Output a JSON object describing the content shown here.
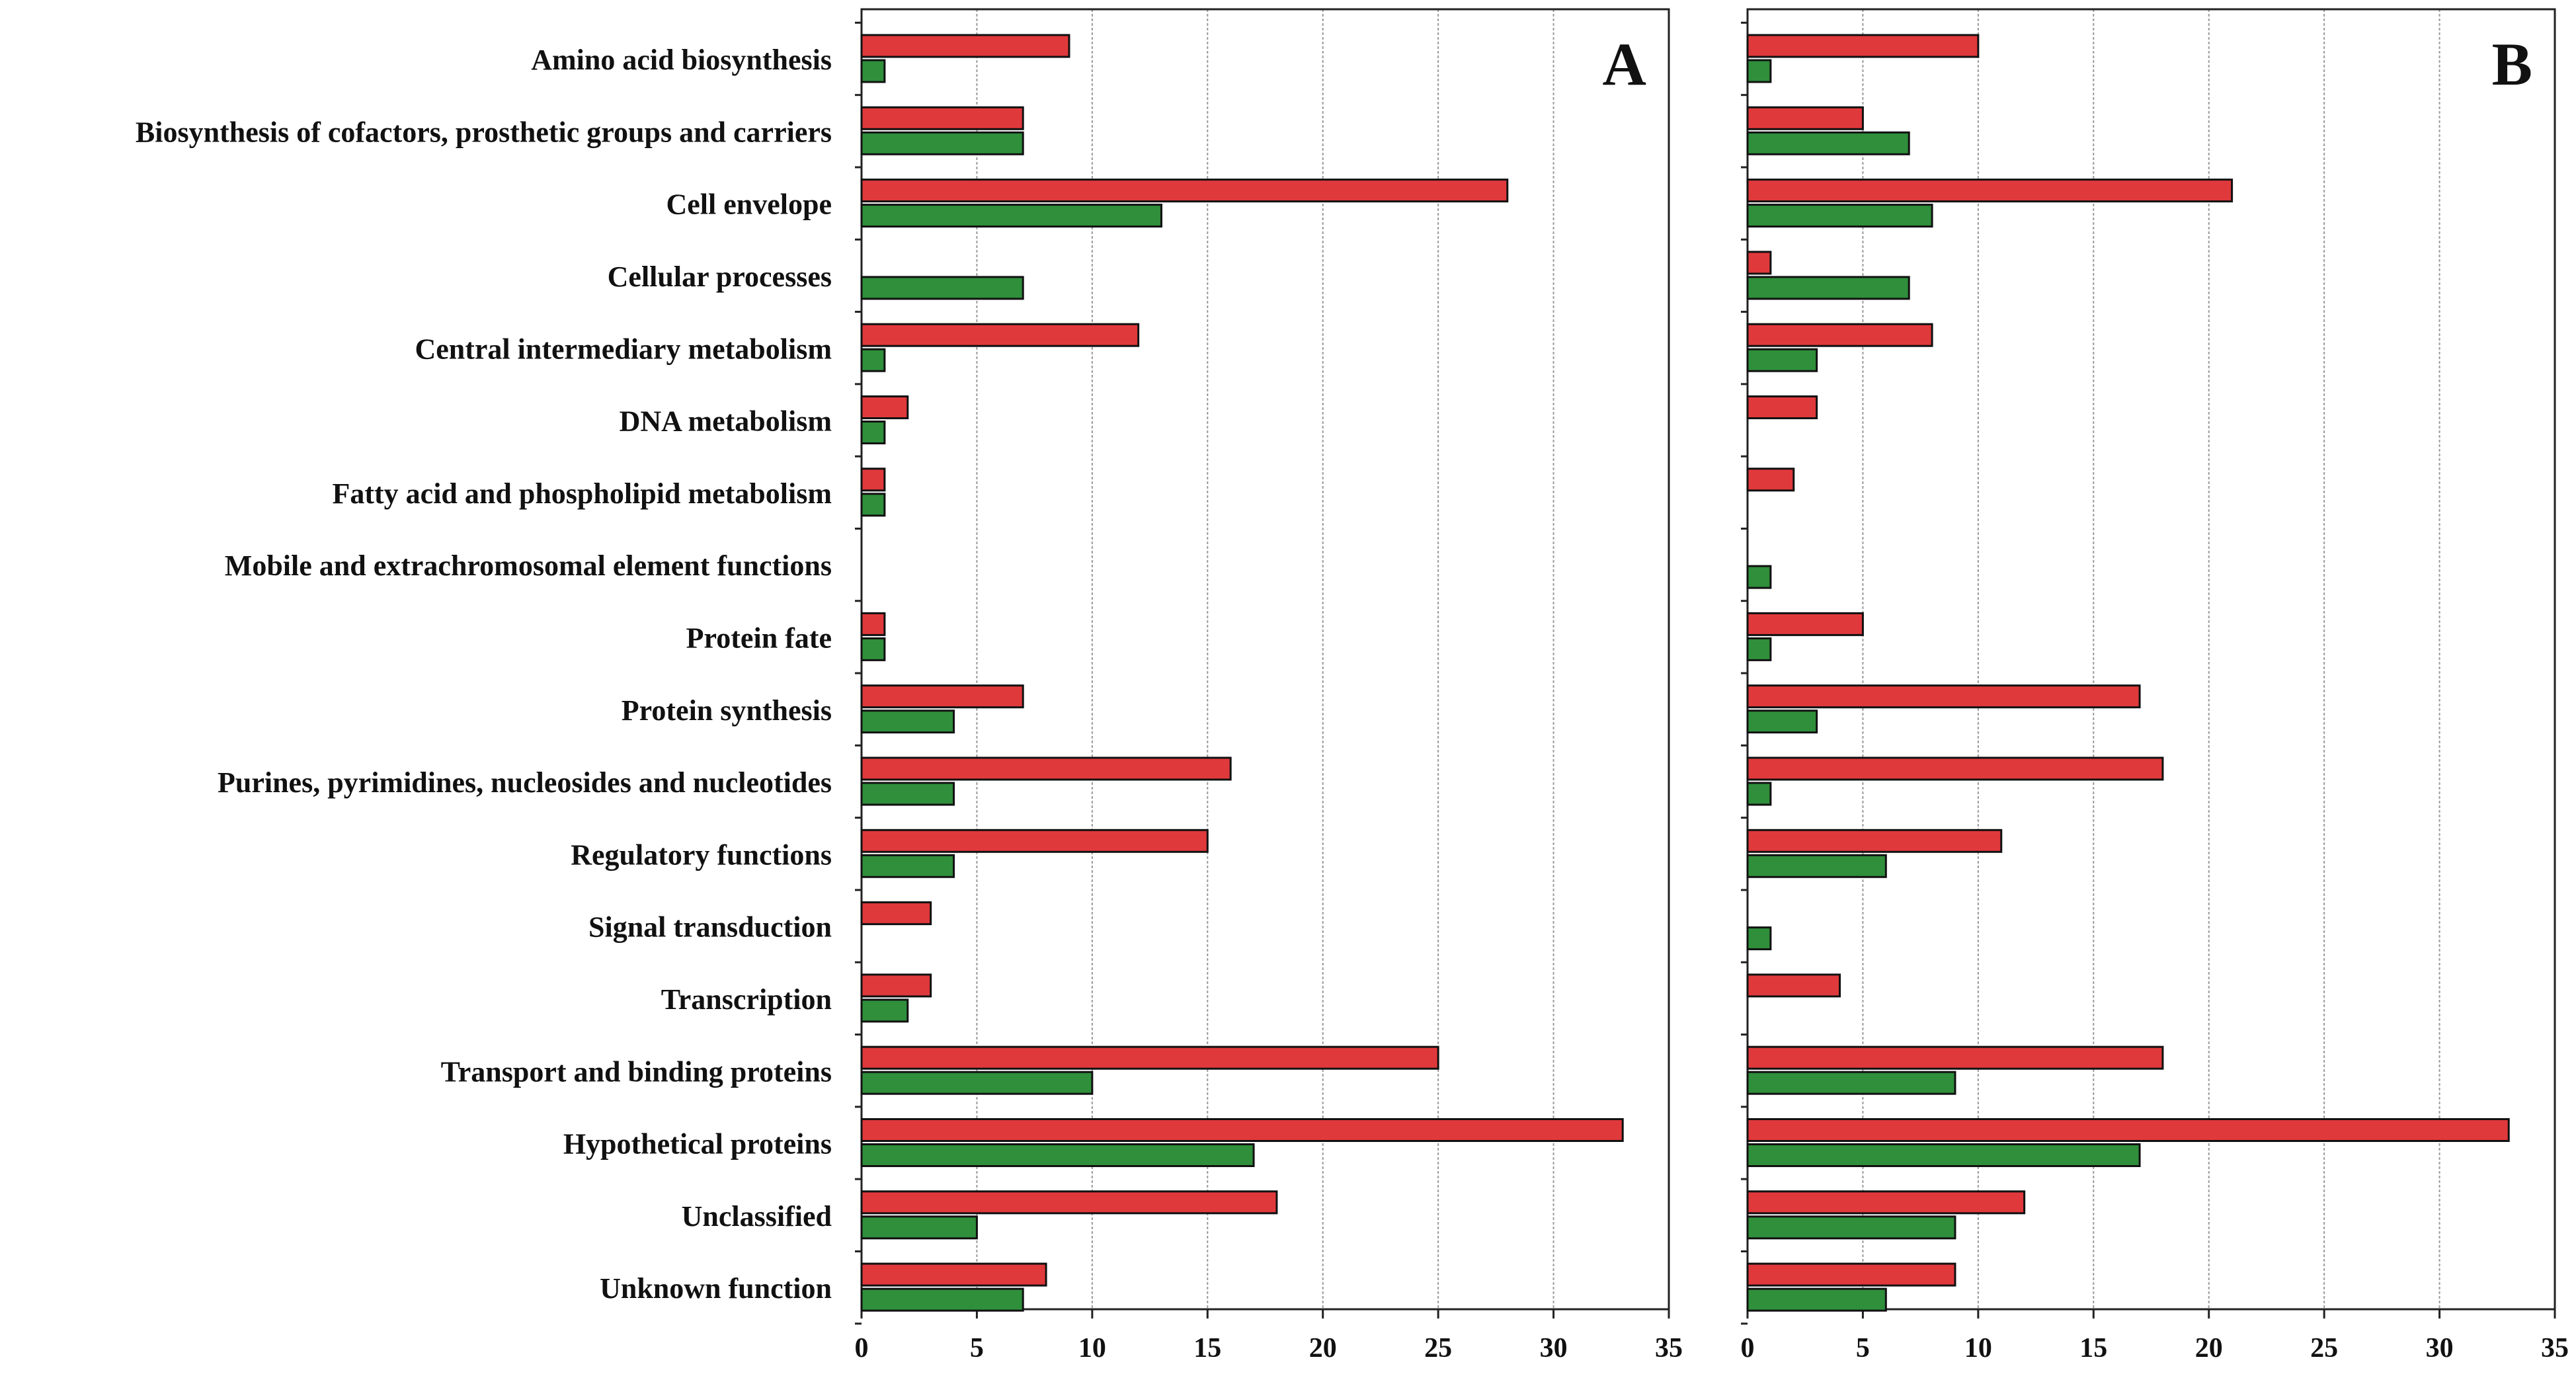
{
  "colors": {
    "series_1": "#e0393c",
    "series_2": "#2f8f3b",
    "frame": "#222222",
    "grid": "#9a9a9a"
  },
  "chart_data": [
    {
      "panel": "A",
      "type": "bar",
      "orientation": "horizontal",
      "title": "",
      "xlabel": "",
      "ylabel": "",
      "xlim": [
        0,
        35
      ],
      "xticks": [
        "0",
        "5",
        "10",
        "15",
        "20",
        "25",
        "30",
        "35"
      ],
      "grid": "vertical dashed",
      "categories": [
        "Amino acid biosynthesis",
        "Biosynthesis of cofactors, prosthetic groups and carriers",
        "Cell envelope",
        "Cellular processes",
        "Central intermediary metabolism",
        "DNA metabolism",
        "Fatty acid and phospholipid metabolism",
        "Mobile and extrachromosomal element functions",
        "Protein fate",
        "Protein synthesis",
        "Purines, pyrimidines, nucleosides and nucleotides",
        "Regulatory functions",
        "Signal transduction",
        "Transcription",
        "Transport and binding proteins",
        "Hypothetical proteins",
        "Unclassified",
        "Unknown function"
      ],
      "series": [
        {
          "name": "red",
          "values": [
            9,
            7,
            28,
            0,
            12,
            2,
            1,
            0,
            1,
            7,
            16,
            15,
            3,
            3,
            25,
            33,
            18,
            8
          ]
        },
        {
          "name": "green",
          "values": [
            1,
            7,
            13,
            7,
            1,
            1,
            1,
            0,
            1,
            4,
            4,
            4,
            0,
            2,
            10,
            17,
            5,
            7
          ]
        }
      ]
    },
    {
      "panel": "B",
      "type": "bar",
      "orientation": "horizontal",
      "title": "",
      "xlabel": "",
      "ylabel": "",
      "xlim": [
        0,
        35
      ],
      "xticks": [
        "0",
        "5",
        "10",
        "15",
        "20",
        "25",
        "30",
        "35"
      ],
      "grid": "vertical dashed",
      "categories": [
        "Amino acid biosynthesis",
        "Biosynthesis of cofactors, prosthetic groups and carriers",
        "Cell envelope",
        "Cellular processes",
        "Central intermediary metabolism",
        "DNA metabolism",
        "Fatty acid and phospholipid metabolism",
        "Mobile and extrachromosomal element functions",
        "Protein fate",
        "Protein synthesis",
        "Purines, pyrimidines, nucleosides and nucleotides",
        "Regulatory functions",
        "Signal transduction",
        "Transcription",
        "Transport and binding proteins",
        "Hypothetical proteins",
        "Unclassified",
        "Unknown function"
      ],
      "series": [
        {
          "name": "red",
          "values": [
            10,
            5,
            21,
            1,
            8,
            3,
            2,
            0,
            5,
            17,
            18,
            11,
            0,
            4,
            18,
            33,
            12,
            9
          ]
        },
        {
          "name": "green",
          "values": [
            1,
            7,
            8,
            7,
            3,
            0,
            0,
            1,
            1,
            3,
            1,
            6,
            1,
            0,
            9,
            17,
            9,
            6
          ]
        }
      ]
    }
  ]
}
